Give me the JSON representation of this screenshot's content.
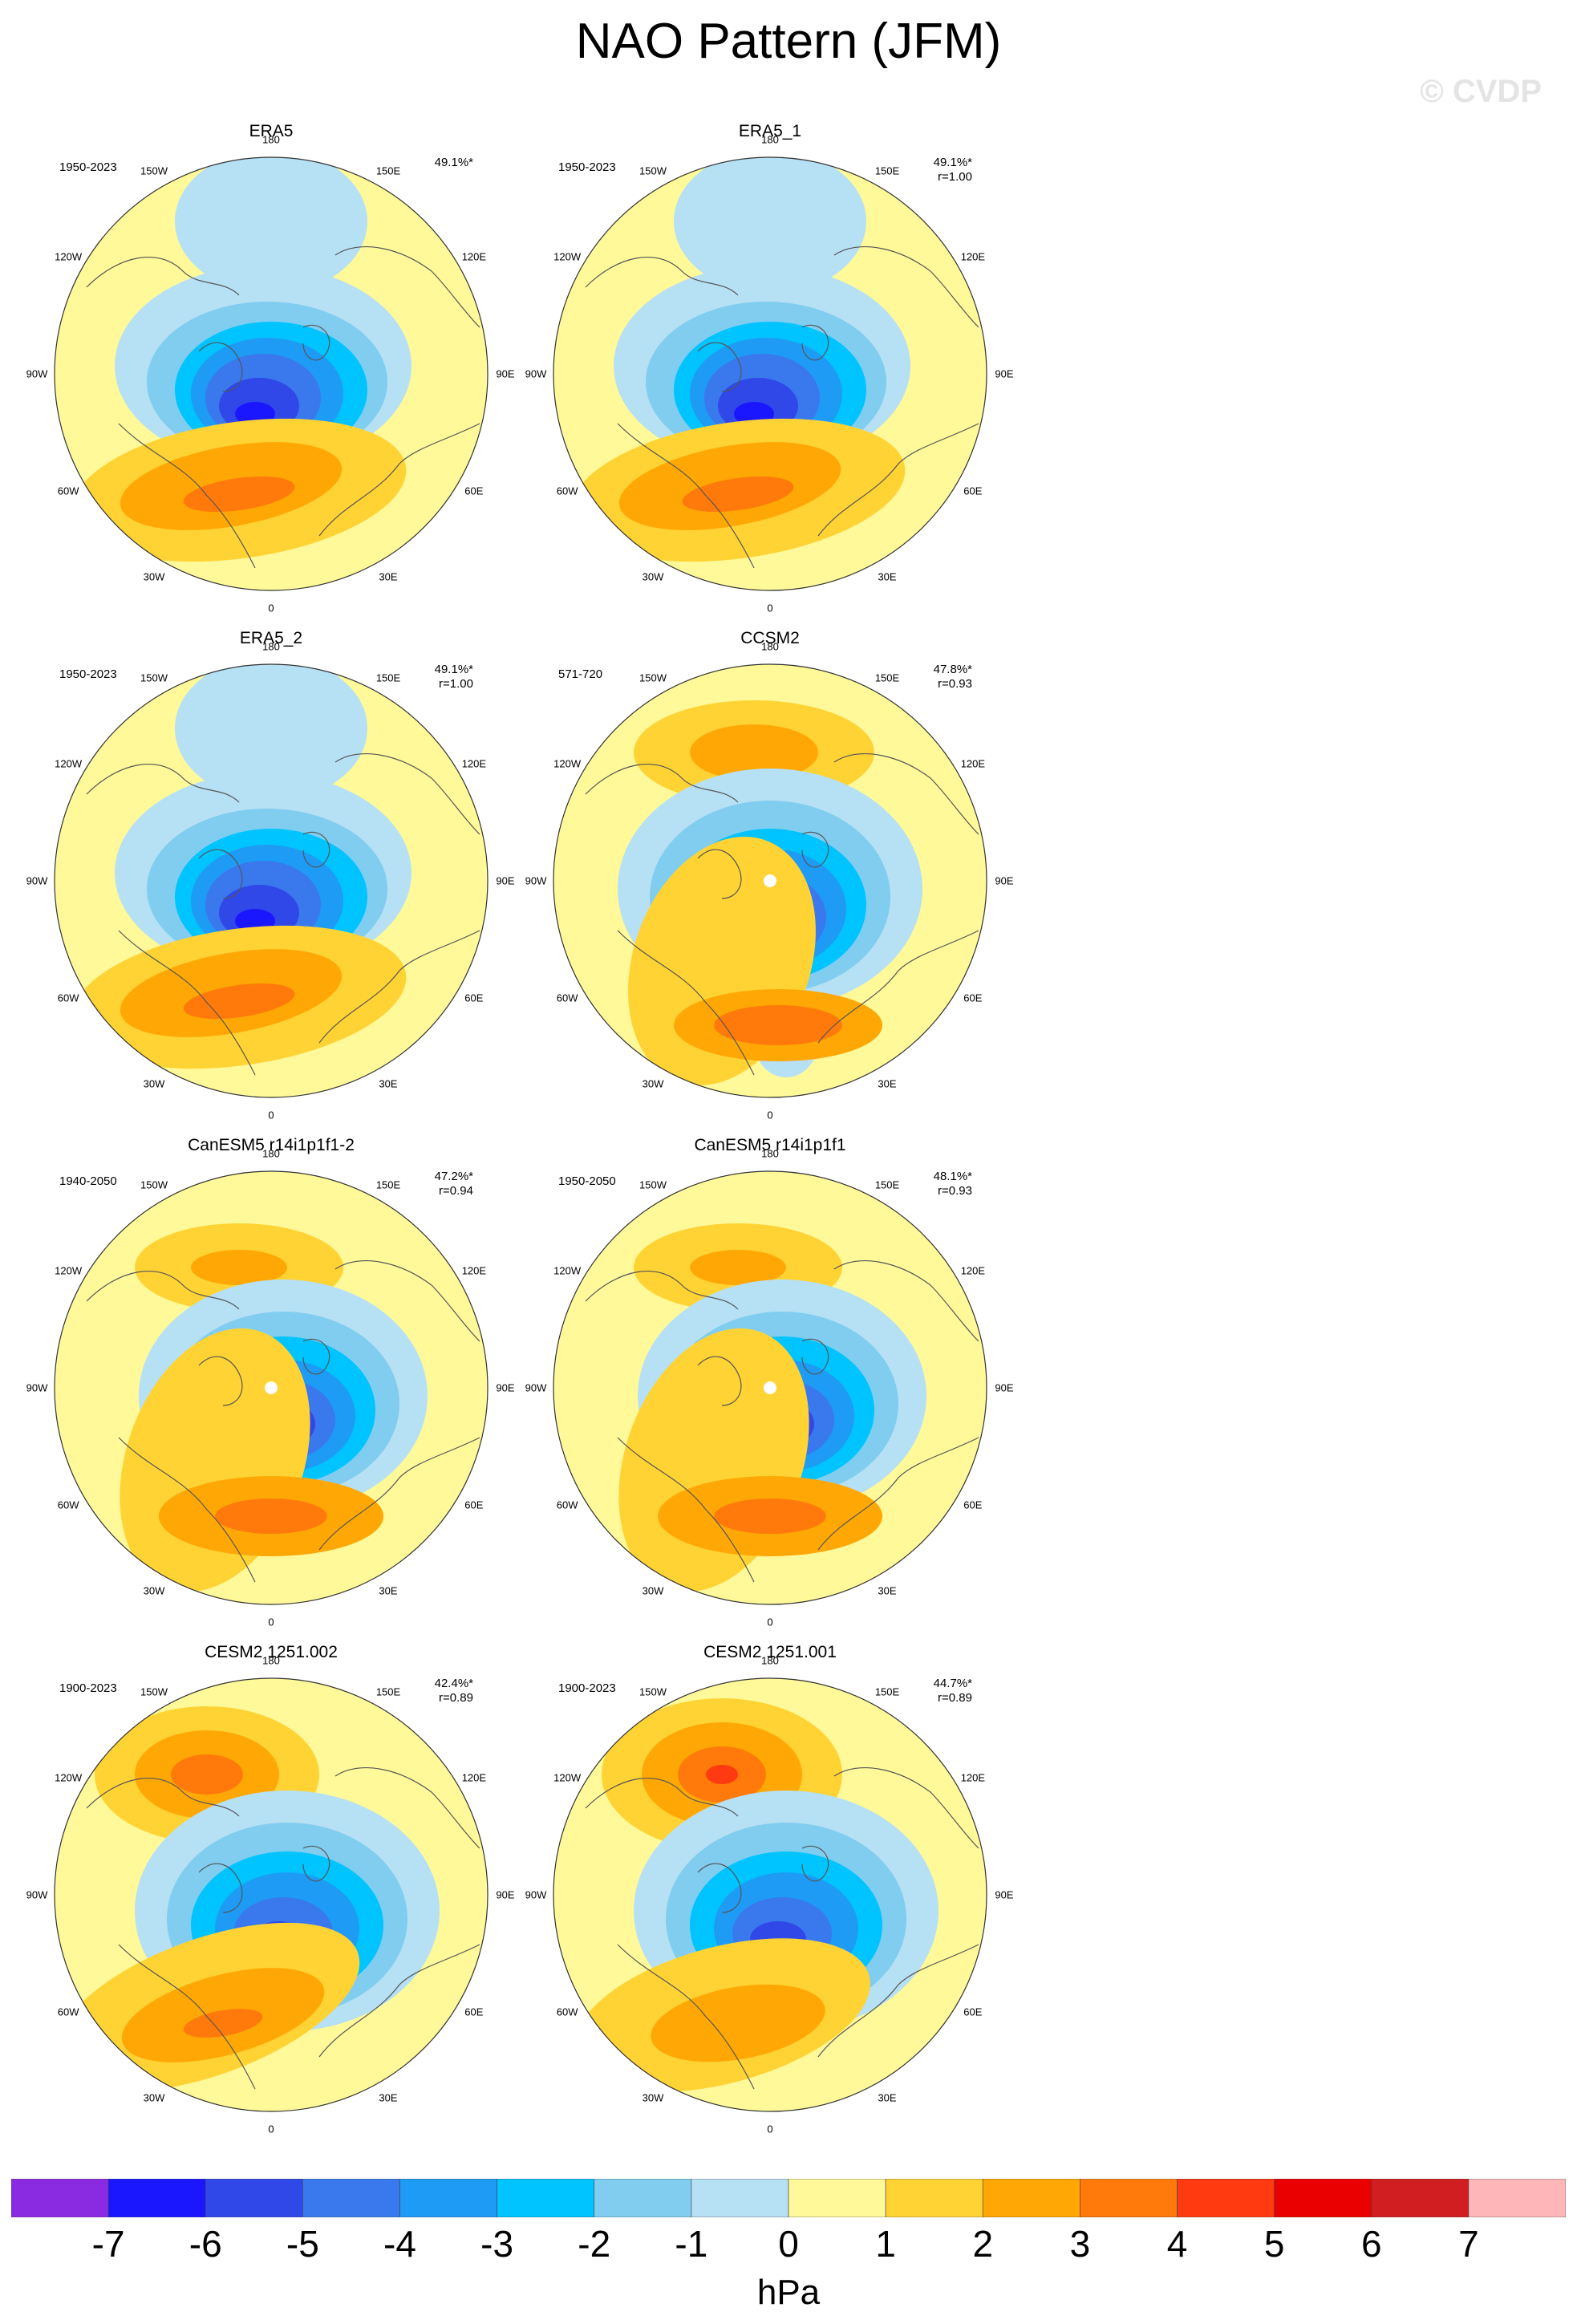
{
  "title": "NAO Pattern (JFM)",
  "watermark": "© CVDP",
  "units": "hPa",
  "colorbar": {
    "ticks": [
      "-7",
      "-6",
      "-5",
      "-4",
      "-3",
      "-2",
      "-1",
      "0",
      "1",
      "2",
      "3",
      "4",
      "5",
      "6",
      "7"
    ],
    "colors": [
      "#8a2be2",
      "#1a17ff",
      "#3048e8",
      "#3a78ee",
      "#1e9bf5",
      "#00c4ff",
      "#80cdf0",
      "#b6e0f4",
      "#fff999",
      "#ffd334",
      "#ffa805",
      "#ff7a0a",
      "#ff3a10",
      "#ea0000",
      "#d11e20",
      "#ffb6b9"
    ]
  },
  "lon_labels": [
    "180",
    "150E",
    "120E",
    "90E",
    "60E",
    "30E",
    "0",
    "30W",
    "60W",
    "90W",
    "120W",
    "150W"
  ],
  "panels": [
    {
      "title": "ERA5",
      "period": "1950-2023",
      "pct": "49.1%*",
      "r": "",
      "style": "obs",
      "dot": false
    },
    {
      "title": "ERA5_1",
      "period": "1950-2023",
      "pct": "49.1%*",
      "r": "r=1.00",
      "style": "obs",
      "dot": false
    },
    {
      "title": "ERA5_2",
      "period": "1950-2023",
      "pct": "49.1%*",
      "r": "r=1.00",
      "style": "obs",
      "dot": false
    },
    {
      "title": "CCSM2",
      "period": "571-720",
      "pct": "47.8%*",
      "r": "r=0.93",
      "style": "ccsm",
      "dot": true
    },
    {
      "title": "CanESM5 r14i1p1f1-2",
      "period": "1940-2050",
      "pct": "47.2%*",
      "r": "r=0.94",
      "style": "can",
      "dot": true
    },
    {
      "title": "CanESM5 r14i1p1f1",
      "period": "1950-2050",
      "pct": "48.1%*",
      "r": "r=0.93",
      "style": "can",
      "dot": true
    },
    {
      "title": "CESM2 1251.002",
      "period": "1900-2023",
      "pct": "42.4%*",
      "r": "r=0.89",
      "style": "cesm",
      "dot": false
    },
    {
      "title": "CESM2 1251.001",
      "period": "1900-2023",
      "pct": "44.7%*",
      "r": "r=0.89",
      "style": "cesm2",
      "dot": false
    }
  ]
}
